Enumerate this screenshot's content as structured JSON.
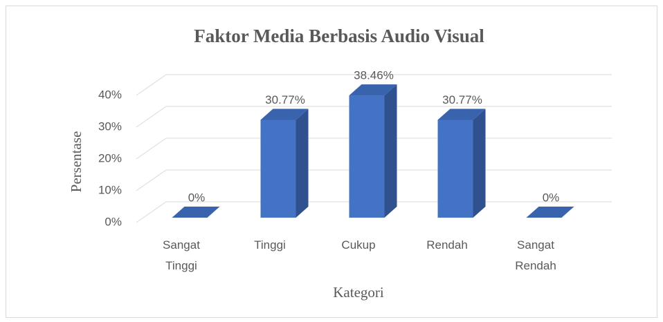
{
  "chart_data": {
    "type": "bar3d",
    "title": "Faktor Media Berbasis Audio Visual",
    "x_label": "Kategori",
    "y_label": "Persentase",
    "categories": [
      "Sangat Tinggi",
      "Tinggi",
      "Cukup",
      "Rendah",
      "Sangat Rendah"
    ],
    "values": [
      0,
      30.77,
      38.46,
      30.77,
      0
    ],
    "value_labels": [
      "0%",
      "30.77%",
      "38.46%",
      "30.77%",
      "0%"
    ],
    "color": "#4472c4",
    "ylim": [
      0,
      40
    ],
    "yticks": [
      {
        "value": 0,
        "label": "0%"
      },
      {
        "value": 10,
        "label": "10%"
      },
      {
        "value": 20,
        "label": "20%"
      },
      {
        "value": 30,
        "label": "30%"
      },
      {
        "value": 40,
        "label": "40%"
      }
    ],
    "grid": true
  }
}
